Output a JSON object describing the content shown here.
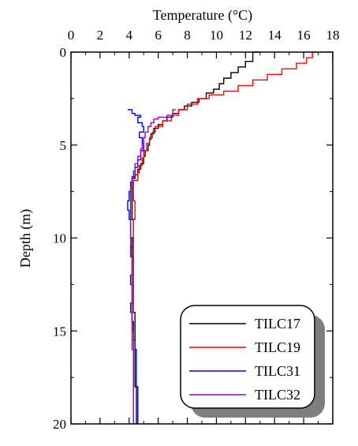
{
  "chart_data": {
    "type": "line",
    "title": "",
    "xlabel": "Temperature (°C)",
    "ylabel": "Depth (m)",
    "x_axis_position": "top",
    "y_axis_inverted": true,
    "xlim": [
      0,
      18
    ],
    "ylim": [
      0,
      20
    ],
    "xticks": [
      0,
      2,
      4,
      6,
      8,
      10,
      12,
      14,
      16,
      18
    ],
    "yticks": [
      0,
      5,
      10,
      15,
      20
    ],
    "grid": false,
    "legend": {
      "position": "bottom-right",
      "shadow": true
    },
    "series": [
      {
        "name": "TILC17",
        "color": "#000000",
        "points": [
          [
            12.9,
            0.0
          ],
          [
            12.5,
            0.5
          ],
          [
            12.0,
            0.8
          ],
          [
            11.5,
            1.1
          ],
          [
            11.0,
            1.4
          ],
          [
            10.5,
            1.7
          ],
          [
            10.2,
            2.0
          ],
          [
            9.8,
            2.2
          ],
          [
            9.3,
            2.5
          ],
          [
            8.8,
            2.7
          ],
          [
            8.3,
            2.9
          ],
          [
            7.8,
            3.1
          ],
          [
            7.4,
            3.3
          ],
          [
            7.0,
            3.5
          ],
          [
            6.6,
            3.7
          ],
          [
            6.3,
            3.9
          ],
          [
            6.0,
            4.1
          ],
          [
            5.7,
            4.4
          ],
          [
            5.5,
            4.7
          ],
          [
            5.4,
            5.0
          ],
          [
            5.3,
            5.3
          ],
          [
            5.1,
            5.6
          ],
          [
            5.0,
            6.0
          ],
          [
            4.8,
            6.3
          ],
          [
            4.6,
            6.6
          ],
          [
            4.4,
            6.8
          ],
          [
            4.2,
            7.1
          ],
          [
            4.2,
            8.0
          ],
          [
            4.2,
            9.0
          ],
          [
            4.3,
            10.0
          ],
          [
            4.2,
            11.0
          ],
          [
            4.3,
            12.0
          ],
          [
            4.3,
            13.0
          ],
          [
            4.3,
            14.0
          ],
          [
            4.4,
            15.0
          ],
          [
            4.4,
            16.0
          ],
          [
            4.4,
            17.0
          ],
          [
            4.4,
            18.0
          ],
          [
            4.5,
            19.0
          ],
          [
            4.5,
            20.0
          ]
        ]
      },
      {
        "name": "TILC19",
        "color": "#ff0000",
        "points": [
          [
            16.8,
            0.0
          ],
          [
            16.6,
            0.3
          ],
          [
            16.2,
            0.6
          ],
          [
            15.5,
            0.9
          ],
          [
            14.5,
            1.2
          ],
          [
            13.5,
            1.5
          ],
          [
            12.5,
            1.8
          ],
          [
            11.5,
            2.1
          ],
          [
            10.5,
            2.3
          ],
          [
            9.5,
            2.5
          ],
          [
            8.7,
            2.8
          ],
          [
            8.0,
            3.1
          ],
          [
            7.4,
            3.4
          ],
          [
            6.9,
            3.7
          ],
          [
            6.3,
            4.0
          ],
          [
            5.8,
            4.3
          ],
          [
            5.6,
            4.6
          ],
          [
            5.4,
            4.9
          ],
          [
            5.2,
            5.3
          ],
          [
            5.0,
            5.7
          ],
          [
            4.9,
            6.1
          ],
          [
            4.7,
            6.5
          ],
          [
            4.6,
            6.9
          ],
          [
            4.3,
            7.2
          ],
          [
            4.3,
            8.0
          ],
          [
            4.4,
            9.0
          ],
          [
            4.3,
            10.0
          ],
          [
            4.3,
            11.0
          ],
          [
            4.3,
            12.0
          ],
          [
            4.3,
            13.0
          ],
          [
            4.3,
            14.0
          ],
          [
            4.2,
            15.0
          ],
          [
            4.2,
            16.0
          ],
          [
            4.3,
            17.0
          ],
          [
            4.3,
            18.0
          ],
          [
            4.3,
            19.0
          ],
          [
            4.3,
            20.0
          ]
        ]
      },
      {
        "name": "TILC31",
        "color": "#0000ff",
        "points": [
          [
            3.9,
            3.1
          ],
          [
            4.2,
            3.3
          ],
          [
            4.4,
            3.4
          ],
          [
            4.8,
            3.5
          ],
          [
            4.6,
            3.8
          ],
          [
            4.9,
            4.0
          ],
          [
            5.0,
            4.3
          ],
          [
            4.7,
            4.6
          ],
          [
            4.9,
            4.9
          ],
          [
            5.0,
            5.3
          ],
          [
            4.8,
            5.8
          ],
          [
            4.6,
            6.2
          ],
          [
            4.4,
            6.7
          ],
          [
            4.2,
            7.0
          ],
          [
            4.1,
            7.5
          ],
          [
            4.0,
            8.0
          ],
          [
            3.9,
            8.5
          ],
          [
            4.0,
            9.0
          ],
          [
            4.1,
            9.5
          ],
          [
            4.1,
            10.0
          ],
          [
            4.2,
            10.5
          ],
          [
            4.1,
            11.0
          ],
          [
            4.2,
            11.5
          ],
          [
            4.2,
            12.0
          ],
          [
            4.1,
            12.5
          ],
          [
            4.2,
            13.0
          ],
          [
            4.2,
            13.5
          ],
          [
            4.1,
            14.0
          ],
          [
            4.2,
            14.5
          ],
          [
            4.3,
            15.0
          ],
          [
            4.3,
            15.5
          ],
          [
            4.4,
            16.0
          ],
          [
            4.5,
            16.5
          ],
          [
            4.5,
            17.0
          ],
          [
            4.5,
            17.5
          ],
          [
            4.5,
            18.0
          ],
          [
            4.6,
            18.5
          ],
          [
            4.6,
            19.0
          ],
          [
            4.6,
            19.5
          ],
          [
            4.6,
            20.0
          ]
        ]
      },
      {
        "name": "TILC32",
        "color": "#9900cc",
        "points": [
          [
            7.2,
            3.1
          ],
          [
            7.0,
            3.4
          ],
          [
            6.6,
            3.5
          ],
          [
            6.0,
            3.6
          ],
          [
            5.7,
            3.8
          ],
          [
            5.5,
            4.0
          ],
          [
            5.3,
            4.3
          ],
          [
            5.1,
            4.6
          ],
          [
            5.0,
            4.9
          ],
          [
            4.9,
            5.2
          ],
          [
            4.8,
            5.6
          ],
          [
            4.6,
            6.0
          ],
          [
            4.4,
            6.4
          ],
          [
            4.3,
            6.8
          ],
          [
            4.2,
            7.2
          ],
          [
            4.1,
            8.0
          ],
          [
            4.1,
            9.0
          ],
          [
            4.1,
            10.0
          ],
          [
            4.1,
            11.0
          ],
          [
            4.2,
            12.0
          ],
          [
            4.2,
            13.0
          ],
          [
            4.2,
            14.0
          ],
          [
            4.2,
            15.0
          ],
          [
            4.3,
            16.0
          ],
          [
            4.3,
            17.0
          ],
          [
            4.3,
            18.0
          ],
          [
            4.3,
            19.0
          ],
          [
            4.3,
            20.0
          ]
        ]
      }
    ]
  }
}
